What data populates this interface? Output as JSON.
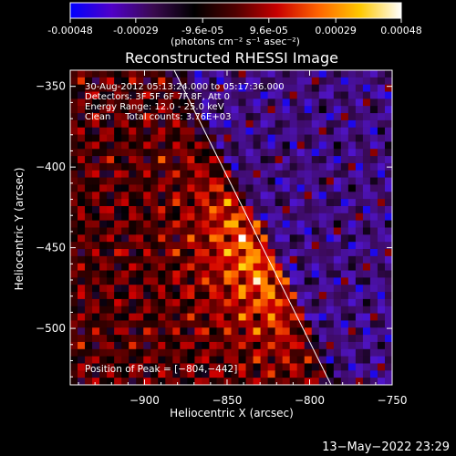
{
  "colorbar": {
    "tick_labels": [
      "-0.00048",
      "-0.00029",
      "-9.6e-05",
      "9.6e-05",
      "0.00029",
      "0.00048"
    ],
    "tick_values": [
      -0.00048,
      -0.00029,
      -9.6e-05,
      9.6e-05,
      0.00029,
      0.00048
    ],
    "range": [
      -0.00048,
      0.00048
    ],
    "unit_label": "(photons cm⁻² s⁻¹ asec⁻²)",
    "colors": [
      "#0000ff",
      "#5000c8",
      "#3a0a50",
      "#000000",
      "#500000",
      "#c80000",
      "#ff6400",
      "#ffc800",
      "#ffffff"
    ]
  },
  "chart_data": {
    "type": "heatmap",
    "title": "Reconstructed RHESSI Image",
    "xlabel": "Heliocentric X (arcsec)",
    "ylabel": "Heliocentric Y (arcsec)",
    "xlim": [
      -945,
      -750
    ],
    "ylim": [
      -535,
      -340
    ],
    "x_ticks": [
      -900,
      -850,
      -800,
      -750
    ],
    "y_ticks": [
      -350,
      -400,
      -450,
      -500
    ],
    "x_tick_labels": [
      "−900",
      "−850",
      "−800",
      "−750"
    ],
    "y_tick_labels": [
      "−350",
      "−400",
      "−450",
      "−500"
    ],
    "annotations": {
      "time_range": "30-Aug-2012 05:13:24.000 to 05:17:36.000",
      "detectors": "Detectors: 3F 5F 6F 7F 8F, Att 0",
      "energy_range": "Energy Range: 12.0 - 25.0 keV",
      "clean_counts": "Clean     Total counts: 3.76E+03",
      "peak": "Position of Peak = [−804,−442]"
    },
    "peak_position": [
      -804,
      -442
    ],
    "total_counts": 3760,
    "limb_line": {
      "from": [
        -882,
        -340
      ],
      "to": [
        -787,
        -535
      ]
    },
    "grid": false
  },
  "footer": {
    "timestamp": "13−May−2022 23:29"
  }
}
